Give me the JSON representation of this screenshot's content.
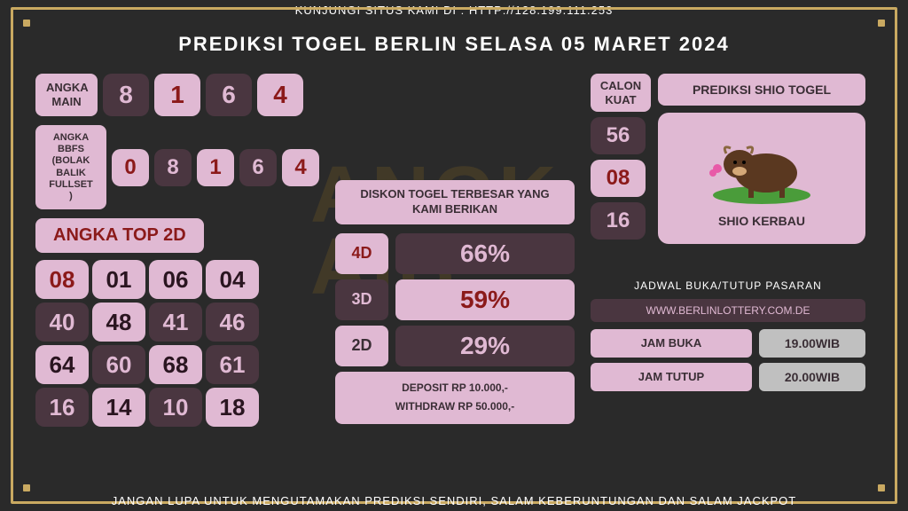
{
  "header": {
    "top": "KUNJUNGI SITUS KAMI DI : HTTP://128.199.111.253",
    "title": "PREDIKSI TOGEL BERLIN SELASA 05 MARET 2024",
    "bottom": "JANGAN LUPA UNTUK MENGUTAMAKAN PREDIKSI SENDIRI, SALAM KEBERUNTUNGAN DAN SALAM JACKPOT"
  },
  "angka_main": {
    "label": "ANGKA MAIN",
    "values": [
      "8",
      "1",
      "6",
      "4"
    ],
    "styles": [
      {
        "bg": "#4a3640",
        "fg": "#e0b9d3"
      },
      {
        "bg": "#e0b9d3",
        "fg": "#8b1a1a"
      },
      {
        "bg": "#4a3640",
        "fg": "#e0b9d3"
      },
      {
        "bg": "#e0b9d3",
        "fg": "#8b1a1a"
      }
    ]
  },
  "bbfs": {
    "label": "ANGKA BBFS (BOLAK BALIK FULLSET )",
    "values": [
      "0",
      "8",
      "1",
      "6",
      "4"
    ],
    "styles": [
      {
        "bg": "#e0b9d3",
        "fg": "#8b1a1a"
      },
      {
        "bg": "#4a3640",
        "fg": "#e0b9d3"
      },
      {
        "bg": "#e0b9d3",
        "fg": "#8b1a1a"
      },
      {
        "bg": "#4a3640",
        "fg": "#e0b9d3"
      },
      {
        "bg": "#e0b9d3",
        "fg": "#8b1a1a"
      }
    ]
  },
  "top2d": {
    "title": "ANGKA TOP 2D",
    "cells": [
      {
        "v": "08",
        "bg": "#e0b9d3",
        "fg": "#8b1a1a"
      },
      {
        "v": "01",
        "bg": "#e0b9d3",
        "fg": "#2a1520"
      },
      {
        "v": "06",
        "bg": "#e0b9d3",
        "fg": "#2a1520"
      },
      {
        "v": "04",
        "bg": "#e0b9d3",
        "fg": "#2a1520"
      },
      {
        "v": "40",
        "bg": "#4a3640",
        "fg": "#e0b9d3"
      },
      {
        "v": "48",
        "bg": "#e0b9d3",
        "fg": "#2a1520"
      },
      {
        "v": "41",
        "bg": "#4a3640",
        "fg": "#e0b9d3"
      },
      {
        "v": "46",
        "bg": "#4a3640",
        "fg": "#e0b9d3"
      },
      {
        "v": "64",
        "bg": "#e0b9d3",
        "fg": "#2a1520"
      },
      {
        "v": "60",
        "bg": "#4a3640",
        "fg": "#e0b9d3"
      },
      {
        "v": "68",
        "bg": "#e0b9d3",
        "fg": "#2a1520"
      },
      {
        "v": "61",
        "bg": "#4a3640",
        "fg": "#e0b9d3"
      },
      {
        "v": "16",
        "bg": "#4a3640",
        "fg": "#e0b9d3"
      },
      {
        "v": "14",
        "bg": "#e0b9d3",
        "fg": "#2a1520"
      },
      {
        "v": "10",
        "bg": "#4a3640",
        "fg": "#e0b9d3"
      },
      {
        "v": "18",
        "bg": "#e0b9d3",
        "fg": "#2a1520"
      }
    ]
  },
  "diskon": {
    "title": "DISKON TOGEL TERBESAR YANG KAMI BERIKAN",
    "rows": [
      {
        "label": "4D",
        "val": "66%",
        "lbg": "#e0b9d3",
        "lfg": "#8b1a1a",
        "vbg": "#4a3640",
        "vfg": "#e0b9d3"
      },
      {
        "label": "3D",
        "val": "59%",
        "lbg": "#4a3640",
        "lfg": "#e0b9d3",
        "vbg": "#e0b9d3",
        "vfg": "#8b1a1a"
      },
      {
        "label": "2D",
        "val": "29%",
        "lbg": "#e0b9d3",
        "lfg": "#3a2e35",
        "vbg": "#4a3640",
        "vfg": "#e0b9d3"
      }
    ],
    "deposit": "DEPOSIT RP 10.000,-",
    "withdraw": "WITHDRAW RP 50.000,-"
  },
  "calon": {
    "label": "CALON KUAT",
    "values": [
      "56",
      "08",
      "16"
    ],
    "styles": [
      {
        "bg": "#4a3640",
        "fg": "#e0b9d3"
      },
      {
        "bg": "#e0b9d3",
        "fg": "#8b1a1a"
      },
      {
        "bg": "#4a3640",
        "fg": "#e0b9d3"
      }
    ]
  },
  "shio": {
    "title": "PREDIKSI SHIO TOGEL",
    "name": "SHIO KERBAU"
  },
  "jadwal": {
    "title": "JADWAL BUKA/TUTUP PASARAN",
    "url": "WWW.BERLINLOTTERY.COM.DE",
    "buka_label": "JAM BUKA",
    "buka_val": "19.00WIB",
    "tutup_label": "JAM TUTUP",
    "tutup_val": "20.00WIB"
  }
}
